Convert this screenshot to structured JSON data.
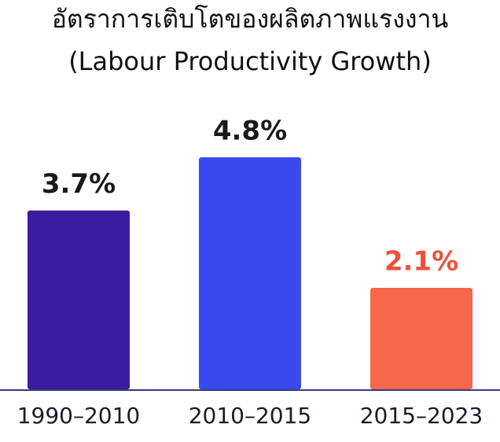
{
  "chart_data": {
    "type": "bar",
    "title": "อัตราการเติบโตของผลิตภาพแรงงาน",
    "subtitle": "(Labour Productivity Growth)",
    "categories": [
      "1990–2010",
      "2010–2015",
      "2015–2023"
    ],
    "values": [
      3.7,
      4.8,
      2.1
    ],
    "value_labels": [
      "3.7%",
      "4.8%",
      "2.1%"
    ],
    "colors": [
      "#3a1a9e",
      "#3b4af0",
      "#f7674b"
    ],
    "label_colors": [
      "#1a1a1a",
      "#1a1a1a",
      "#f0503a"
    ]
  }
}
